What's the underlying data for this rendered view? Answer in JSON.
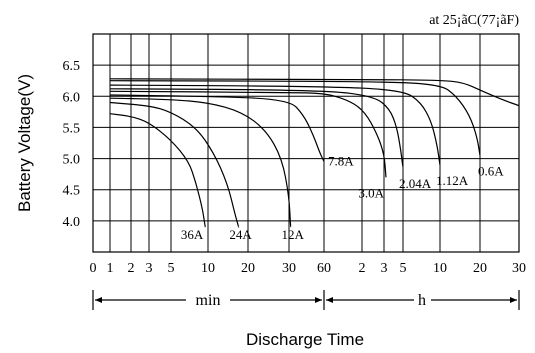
{
  "chart_data": {
    "type": "line",
    "condition_label": "at 25¡ãC(77¡ãF)",
    "ylabel": "Battery Voltage(V)",
    "xlabel": "Discharge Time",
    "ylim": [
      3.5,
      7.0
    ],
    "y_ticks": [
      "4.0",
      "4.5",
      "5.0",
      "5.5",
      "6.0",
      "6.5"
    ],
    "x_tick_labels": [
      "0",
      "1",
      "2",
      "3",
      "5",
      "10",
      "20",
      "30",
      "60",
      "2",
      "3",
      "5",
      "10",
      "20",
      "30"
    ],
    "x_scale": "log-like time axis (minutes then hours)",
    "unit_labels": {
      "minutes": "min",
      "hours": "h"
    },
    "grid": true,
    "series": [
      {
        "name": "36A",
        "points": [
          [
            1,
            5.72
          ],
          [
            2,
            5.68
          ],
          [
            3,
            5.58
          ],
          [
            5,
            5.3
          ],
          [
            7,
            4.95
          ],
          [
            8,
            4.6
          ],
          [
            9,
            4.2
          ],
          [
            9.5,
            3.9
          ]
        ]
      },
      {
        "name": "24A",
        "points": [
          [
            1,
            5.9
          ],
          [
            3,
            5.85
          ],
          [
            5,
            5.75
          ],
          [
            8,
            5.5
          ],
          [
            11,
            5.1
          ],
          [
            14,
            4.6
          ],
          [
            16,
            4.1
          ],
          [
            17,
            3.9
          ]
        ]
      },
      {
        "name": "12A",
        "points": [
          [
            1,
            5.97
          ],
          [
            5,
            5.95
          ],
          [
            10,
            5.9
          ],
          [
            18,
            5.75
          ],
          [
            24,
            5.45
          ],
          [
            28,
            5.0
          ],
          [
            30,
            4.4
          ],
          [
            31,
            3.9
          ]
        ]
      },
      {
        "name": "7.8A",
        "points": [
          [
            1,
            6.02
          ],
          [
            10,
            6.0
          ],
          [
            30,
            5.95
          ],
          [
            40,
            5.7
          ],
          [
            48,
            5.4
          ],
          [
            55,
            5.1
          ],
          [
            60,
            4.95
          ]
        ]
      },
      {
        "name": "3.0A",
        "points": [
          [
            1,
            6.08
          ],
          [
            30,
            6.06
          ],
          [
            60,
            6.05
          ],
          [
            90,
            5.95
          ],
          [
            120,
            5.8
          ],
          [
            150,
            5.5
          ],
          [
            180,
            5.1
          ],
          [
            190,
            4.7
          ]
        ]
      },
      {
        "name": "2.04A",
        "points": [
          [
            1,
            6.12
          ],
          [
            60,
            6.1
          ],
          [
            150,
            6.0
          ],
          [
            210,
            5.8
          ],
          [
            255,
            5.5
          ],
          [
            285,
            5.1
          ],
          [
            300,
            4.85
          ]
        ]
      },
      {
        "name": "1.12A",
        "points": [
          [
            1,
            6.18
          ],
          [
            60,
            6.16
          ],
          [
            300,
            6.1
          ],
          [
            420,
            5.9
          ],
          [
            510,
            5.6
          ],
          [
            570,
            5.2
          ],
          [
            600,
            4.9
          ]
        ]
      },
      {
        "name": "0.6A",
        "points": [
          [
            1,
            6.25
          ],
          [
            120,
            6.24
          ],
          [
            600,
            6.2
          ],
          [
            800,
            6.0
          ],
          [
            1000,
            5.7
          ],
          [
            1140,
            5.35
          ],
          [
            1200,
            5.05
          ]
        ]
      },
      {
        "name": "",
        "points": [
          [
            1,
            6.28
          ],
          [
            120,
            6.27
          ],
          [
            600,
            6.26
          ],
          [
            900,
            6.22
          ],
          [
            1200,
            6.1
          ],
          [
            1500,
            5.95
          ],
          [
            1800,
            5.85
          ]
        ]
      }
    ]
  }
}
